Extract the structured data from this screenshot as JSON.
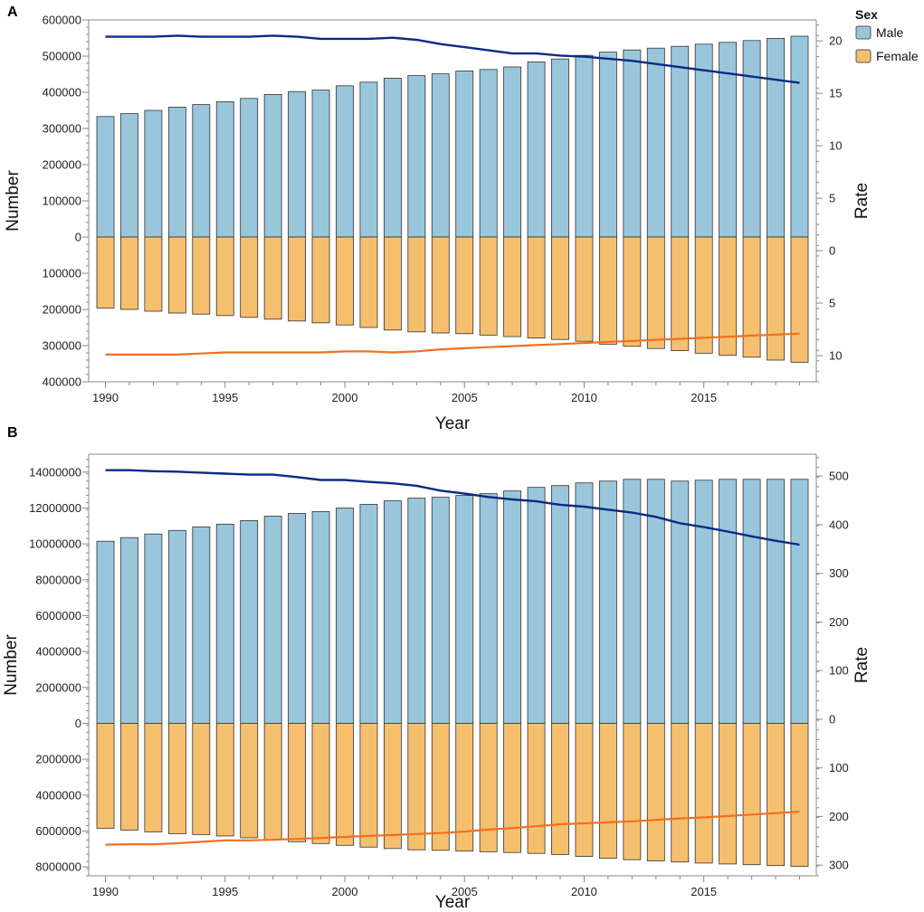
{
  "legend": {
    "title": "Sex",
    "items": [
      {
        "label": "Male",
        "color": "#9ac6db"
      },
      {
        "label": "Female",
        "color": "#f5bf6e"
      }
    ]
  },
  "colors": {
    "male_bar": "#9ac6db",
    "female_bar": "#f5bf6e",
    "bar_edge": "#333333",
    "male_line": "#0b2a84",
    "female_line": "#f07020",
    "axis": "#888888"
  },
  "chart_data": [
    {
      "panel_label": "A",
      "type": "bar",
      "subtype": "diverging bar with rate lines on secondary axis",
      "xlabel": "Year",
      "ylabel": "Number",
      "y2label": "Rate",
      "x": [
        1990,
        1991,
        1992,
        1993,
        1994,
        1995,
        1996,
        1997,
        1998,
        1999,
        2000,
        2001,
        2002,
        2003,
        2004,
        2005,
        2006,
        2007,
        2008,
        2009,
        2010,
        2011,
        2012,
        2013,
        2014,
        2015,
        2016,
        2017,
        2018,
        2019
      ],
      "xticks": [
        1990,
        1995,
        2000,
        2005,
        2010,
        2015
      ],
      "ylim": [
        -400000,
        600000
      ],
      "yticks": [
        600000,
        500000,
        400000,
        300000,
        200000,
        100000,
        0,
        -100000,
        -200000,
        -300000,
        -400000
      ],
      "ytick_labels": [
        "600000",
        "500000",
        "400000",
        "300000",
        "200000",
        "100000",
        "0",
        "100000",
        "200000",
        "300000",
        "400000"
      ],
      "y2lim": [
        -12.5,
        22
      ],
      "y2ticks": [
        20,
        15,
        10,
        5,
        0,
        -5,
        -10
      ],
      "y2tick_labels": [
        "20",
        "15",
        "10",
        "5",
        "0",
        "5",
        "10"
      ],
      "series": [
        {
          "name": "Male",
          "kind": "bar",
          "axis": "left",
          "values": [
            333000,
            341000,
            350000,
            359000,
            366000,
            374000,
            383000,
            394000,
            402000,
            406000,
            418000,
            428000,
            439000,
            446000,
            451000,
            459000,
            463000,
            470000,
            484000,
            492000,
            502000,
            511000,
            517000,
            522000,
            527000,
            533000,
            538000,
            543000,
            549000,
            555000
          ]
        },
        {
          "name": "Female",
          "kind": "bar",
          "axis": "left",
          "values": [
            -196000,
            -200000,
            -205000,
            -210000,
            -213000,
            -217000,
            -222000,
            -227000,
            -232000,
            -237000,
            -243000,
            -250000,
            -257000,
            -262000,
            -265000,
            -267000,
            -271000,
            -275000,
            -279000,
            -283000,
            -288000,
            -296000,
            -302000,
            -308000,
            -314000,
            -321000,
            -327000,
            -332000,
            -340000,
            -346000
          ]
        },
        {
          "name": "Male rate",
          "kind": "line",
          "axis": "right",
          "values": [
            20.4,
            20.4,
            20.4,
            20.5,
            20.4,
            20.4,
            20.4,
            20.5,
            20.4,
            20.2,
            20.2,
            20.2,
            20.3,
            20.1,
            19.7,
            19.4,
            19.1,
            18.8,
            18.8,
            18.6,
            18.5,
            18.3,
            18.1,
            17.8,
            17.5,
            17.2,
            16.9,
            16.6,
            16.3,
            16.0
          ]
        },
        {
          "name": "Female rate",
          "kind": "line",
          "axis": "right",
          "values": [
            -9.9,
            -9.9,
            -9.9,
            -9.9,
            -9.8,
            -9.7,
            -9.7,
            -9.7,
            -9.7,
            -9.7,
            -9.6,
            -9.6,
            -9.7,
            -9.6,
            -9.4,
            -9.3,
            -9.2,
            -9.1,
            -9.0,
            -8.9,
            -8.8,
            -8.7,
            -8.6,
            -8.5,
            -8.4,
            -8.3,
            -8.2,
            -8.1,
            -8.0,
            -7.9
          ]
        }
      ]
    },
    {
      "panel_label": "B",
      "type": "bar",
      "subtype": "diverging bar with rate lines on secondary axis",
      "xlabel": "Year",
      "ylabel": "Number",
      "y2label": "Rate",
      "x": [
        1990,
        1991,
        1992,
        1993,
        1994,
        1995,
        1996,
        1997,
        1998,
        1999,
        2000,
        2001,
        2002,
        2003,
        2004,
        2005,
        2006,
        2007,
        2008,
        2009,
        2010,
        2011,
        2012,
        2013,
        2014,
        2015,
        2016,
        2017,
        2018,
        2019
      ],
      "xticks": [
        1990,
        1995,
        2000,
        2005,
        2010,
        2015
      ],
      "ylim": [
        -8500000,
        15000000
      ],
      "yticks": [
        14000000,
        12000000,
        10000000,
        8000000,
        6000000,
        4000000,
        2000000,
        0,
        -2000000,
        -4000000,
        -6000000,
        -8000000
      ],
      "ytick_labels": [
        "14000000",
        "12000000",
        "10000000",
        "8000000",
        "6000000",
        "4000000",
        "2000000",
        "0",
        "2000000",
        "4000000",
        "6000000",
        "8000000"
      ],
      "y2lim": [
        -322,
        545
      ],
      "y2ticks": [
        500,
        400,
        300,
        200,
        100,
        0,
        -100,
        -200,
        -300
      ],
      "y2tick_labels": [
        "500",
        "400",
        "300",
        "200",
        "100",
        "0",
        "100",
        "200",
        "300"
      ],
      "series": [
        {
          "name": "Male",
          "kind": "bar",
          "axis": "left",
          "values": [
            10150000,
            10350000,
            10550000,
            10750000,
            10950000,
            11100000,
            11300000,
            11550000,
            11700000,
            11800000,
            12000000,
            12200000,
            12400000,
            12550000,
            12600000,
            12700000,
            12800000,
            12950000,
            13150000,
            13250000,
            13400000,
            13500000,
            13600000,
            13600000,
            13500000,
            13550000,
            13600000,
            13600000,
            13600000,
            13600000
          ]
        },
        {
          "name": "Female",
          "kind": "bar",
          "axis": "left",
          "values": [
            -5850000,
            -5950000,
            -6050000,
            -6150000,
            -6200000,
            -6280000,
            -6380000,
            -6480000,
            -6600000,
            -6700000,
            -6800000,
            -6900000,
            -6980000,
            -7050000,
            -7080000,
            -7120000,
            -7160000,
            -7200000,
            -7250000,
            -7310000,
            -7420000,
            -7520000,
            -7600000,
            -7670000,
            -7730000,
            -7790000,
            -7840000,
            -7880000,
            -7930000,
            -7980000
          ]
        },
        {
          "name": "Male rate",
          "kind": "line",
          "axis": "right",
          "values": [
            512,
            512,
            510,
            509,
            507,
            505,
            503,
            503,
            498,
            492,
            492,
            488,
            485,
            480,
            470,
            464,
            457,
            452,
            448,
            441,
            437,
            431,
            425,
            416,
            403,
            395,
            386,
            376,
            367,
            359
          ]
        },
        {
          "name": "Female rate",
          "kind": "line",
          "axis": "right",
          "values": [
            -258,
            -257,
            -257,
            -255,
            -252,
            -249,
            -249,
            -248,
            -246,
            -244,
            -242,
            -240,
            -238,
            -236,
            -234,
            -231,
            -227,
            -224,
            -220,
            -216,
            -214,
            -212,
            -210,
            -207,
            -204,
            -202,
            -199,
            -196,
            -193,
            -190
          ]
        }
      ]
    }
  ]
}
